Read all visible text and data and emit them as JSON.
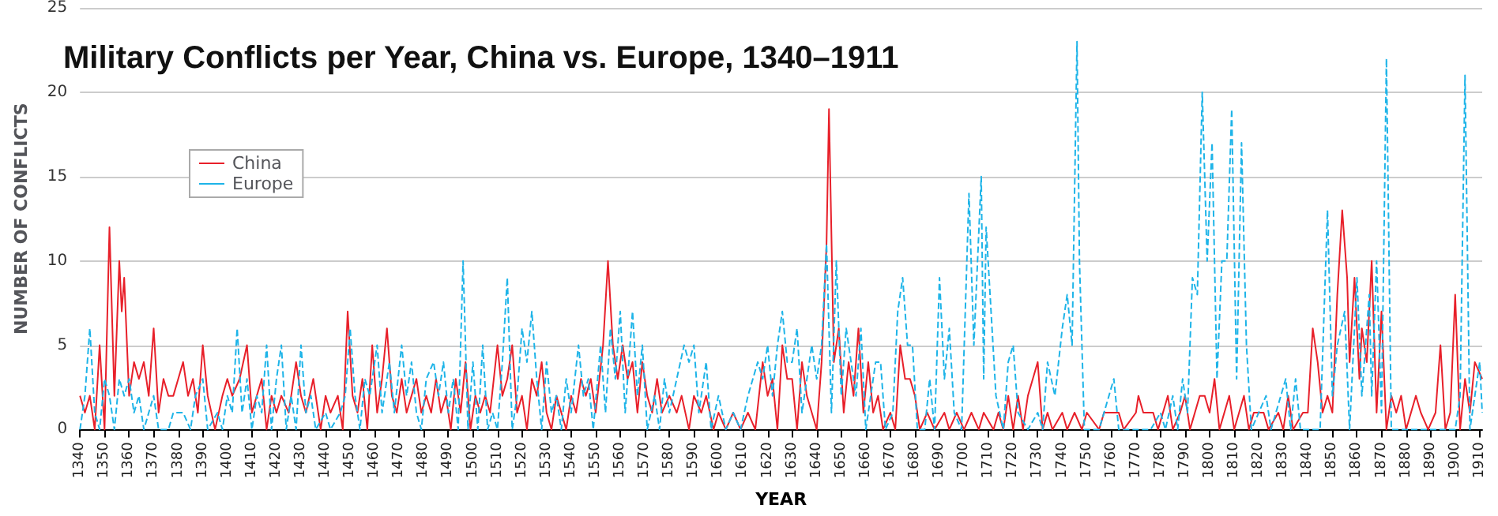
{
  "chart_data": {
    "type": "line",
    "title": "Military Conflicts per Year, China vs. Europe, 1340–1911",
    "xlabel": "YEAR",
    "ylabel": "NUMBER OF CONFLICTS",
    "xlim": [
      1340,
      1911
    ],
    "xticks": [
      1340,
      1350,
      1360,
      1370,
      1380,
      1390,
      1400,
      1410,
      1420,
      1430,
      1440,
      1450,
      1460,
      1470,
      1480,
      1490,
      1500,
      1510,
      1520,
      1530,
      1540,
      1550,
      1560,
      1570,
      1580,
      1590,
      1600,
      1610,
      1620,
      1630,
      1640,
      1650,
      1660,
      1670,
      1680,
      1690,
      1700,
      1710,
      1720,
      1730,
      1740,
      1750,
      1760,
      1770,
      1780,
      1790,
      1800,
      1810,
      1820,
      1830,
      1840,
      1850,
      1860,
      1870,
      1880,
      1890,
      1900,
      1910
    ],
    "ylim": [
      0,
      25
    ],
    "yticks": [
      0,
      5,
      10,
      15,
      20,
      25
    ],
    "grid": "y",
    "legend": "top left",
    "marker": "none",
    "series": [
      {
        "name": "China",
        "color": "#e8202a",
        "line_style": "solid",
        "x": [
          1340,
          1342,
          1344,
          1346,
          1348,
          1350,
          1352,
          1354,
          1356,
          1357,
          1358,
          1360,
          1362,
          1364,
          1366,
          1368,
          1370,
          1372,
          1374,
          1376,
          1378,
          1380,
          1382,
          1384,
          1386,
          1388,
          1390,
          1392,
          1395,
          1398,
          1400,
          1402,
          1405,
          1408,
          1410,
          1412,
          1414,
          1416,
          1418,
          1420,
          1422,
          1425,
          1428,
          1430,
          1432,
          1435,
          1438,
          1440,
          1442,
          1445,
          1447,
          1449,
          1451,
          1453,
          1455,
          1457,
          1459,
          1461,
          1463,
          1465,
          1467,
          1469,
          1471,
          1473,
          1475,
          1477,
          1479,
          1481,
          1483,
          1485,
          1487,
          1489,
          1491,
          1493,
          1495,
          1497,
          1499,
          1501,
          1503,
          1505,
          1507,
          1510,
          1512,
          1514,
          1516,
          1518,
          1520,
          1522,
          1524,
          1526,
          1528,
          1530,
          1532,
          1534,
          1536,
          1538,
          1540,
          1542,
          1544,
          1546,
          1548,
          1550,
          1553,
          1555,
          1557,
          1559,
          1561,
          1563,
          1565,
          1567,
          1569,
          1571,
          1573,
          1575,
          1577,
          1580,
          1583,
          1585,
          1588,
          1590,
          1593,
          1595,
          1598,
          1600,
          1603,
          1606,
          1609,
          1612,
          1615,
          1618,
          1620,
          1622,
          1624,
          1626,
          1628,
          1630,
          1632,
          1634,
          1636,
          1638,
          1640,
          1642,
          1644,
          1645,
          1647,
          1649,
          1651,
          1653,
          1655,
          1657,
          1659,
          1661,
          1663,
          1665,
          1667,
          1670,
          1672,
          1674,
          1676,
          1678,
          1680,
          1682,
          1685,
          1688,
          1692,
          1694,
          1697,
          1700,
          1703,
          1706,
          1708,
          1712,
          1714,
          1716,
          1718,
          1720,
          1722,
          1724,
          1726,
          1728,
          1730,
          1732,
          1734,
          1736,
          1740,
          1742,
          1745,
          1748,
          1750,
          1755,
          1757,
          1763,
          1765,
          1770,
          1771,
          1773,
          1777,
          1779,
          1783,
          1785,
          1788,
          1790,
          1792,
          1796,
          1798,
          1800,
          1802,
          1804,
          1808,
          1810,
          1812,
          1814,
          1816,
          1818,
          1822,
          1824,
          1828,
          1830,
          1832,
          1834,
          1838,
          1840,
          1842,
          1844,
          1846,
          1848,
          1850,
          1852,
          1854,
          1856,
          1857,
          1859,
          1861,
          1862,
          1864,
          1866,
          1868,
          1870,
          1872,
          1874,
          1876,
          1878,
          1880,
          1884,
          1886,
          1889,
          1892,
          1894,
          1896,
          1898,
          1900,
          1902,
          1904,
          1906,
          1908,
          1911
        ],
        "values": [
          2,
          1,
          2,
          0,
          5,
          0,
          12,
          2,
          10,
          7,
          9,
          2,
          4,
          3,
          4,
          2,
          6,
          1,
          3,
          2,
          2,
          3,
          4,
          2,
          3,
          1,
          5,
          2,
          0,
          2,
          3,
          2,
          3,
          5,
          1,
          2,
          3,
          0,
          2,
          1,
          2,
          1,
          4,
          2,
          1,
          3,
          0,
          2,
          1,
          2,
          0,
          7,
          2,
          1,
          3,
          0,
          5,
          1,
          3,
          6,
          2,
          1,
          3,
          1,
          2,
          3,
          1,
          2,
          1,
          3,
          1,
          2,
          0,
          3,
          1,
          4,
          0,
          2,
          1,
          2,
          1,
          5,
          2,
          3,
          5,
          1,
          2,
          0,
          3,
          2,
          4,
          1,
          0,
          2,
          1,
          0,
          2,
          1,
          3,
          2,
          3,
          1,
          5,
          10,
          5,
          3,
          5,
          3,
          4,
          1,
          4,
          2,
          1,
          3,
          1,
          2,
          1,
          2,
          0,
          2,
          1,
          2,
          0,
          1,
          0,
          1,
          0,
          1,
          0,
          4,
          2,
          3,
          0,
          5,
          3,
          3,
          0,
          4,
          2,
          1,
          0,
          4,
          11,
          19,
          4,
          6,
          1,
          4,
          2,
          6,
          1,
          4,
          1,
          2,
          0,
          1,
          0,
          5,
          3,
          3,
          2,
          0,
          1,
          0,
          1,
          0,
          1,
          0,
          1,
          0,
          1,
          0,
          1,
          0,
          2,
          0,
          2,
          0,
          2,
          3,
          4,
          0,
          1,
          0,
          1,
          0,
          1,
          0,
          1,
          0,
          1,
          1,
          0,
          1,
          2,
          1,
          1,
          0,
          2,
          0,
          1,
          2,
          0,
          2,
          2,
          1,
          3,
          0,
          2,
          0,
          1,
          2,
          0,
          1,
          1,
          0,
          1,
          0,
          2,
          0,
          1,
          1,
          6,
          4,
          1,
          2,
          1,
          8,
          13,
          9,
          4,
          9,
          3,
          6,
          4,
          10,
          1,
          7,
          0,
          2,
          1,
          2,
          0,
          2,
          1,
          0,
          1,
          5,
          0,
          1,
          8,
          0,
          3,
          1,
          4,
          3
        ]
      },
      {
        "name": "Europe",
        "color": "#1eb4e8",
        "line_style": "dashed",
        "x": [
          1340,
          1342,
          1344,
          1346,
          1348,
          1350,
          1352,
          1354,
          1356,
          1358,
          1360,
          1362,
          1364,
          1366,
          1368,
          1370,
          1372,
          1376,
          1378,
          1382,
          1385,
          1387,
          1390,
          1392,
          1396,
          1398,
          1400,
          1402,
          1404,
          1406,
          1408,
          1410,
          1412,
          1414,
          1416,
          1418,
          1420,
          1422,
          1424,
          1426,
          1428,
          1430,
          1432,
          1434,
          1436,
          1440,
          1442,
          1446,
          1448,
          1450,
          1452,
          1454,
          1456,
          1458,
          1461,
          1463,
          1466,
          1468,
          1471,
          1473,
          1475,
          1477,
          1479,
          1481,
          1484,
          1486,
          1488,
          1490,
          1492,
          1494,
          1496,
          1498,
          1500,
          1502,
          1504,
          1506,
          1508,
          1510,
          1512,
          1514,
          1516,
          1518,
          1520,
          1522,
          1524,
          1526,
          1528,
          1530,
          1532,
          1534,
          1536,
          1538,
          1540,
          1543,
          1545,
          1547,
          1549,
          1552,
          1554,
          1556,
          1558,
          1560,
          1562,
          1565,
          1567,
          1569,
          1571,
          1574,
          1576,
          1578,
          1580,
          1583,
          1586,
          1588,
          1590,
          1592,
          1595,
          1597,
          1600,
          1603,
          1606,
          1609,
          1612,
          1616,
          1618,
          1620,
          1622,
          1624,
          1626,
          1628,
          1630,
          1632,
          1634,
          1636,
          1638,
          1640,
          1642,
          1644,
          1646,
          1648,
          1650,
          1652,
          1654,
          1656,
          1658,
          1660,
          1662,
          1664,
          1666,
          1668,
          1671,
          1673,
          1675,
          1677,
          1679,
          1681,
          1684,
          1686,
          1688,
          1690,
          1692,
          1694,
          1696,
          1699,
          1702,
          1704,
          1707,
          1708,
          1709,
          1711,
          1713,
          1716,
          1718,
          1720,
          1722,
          1726,
          1730,
          1732,
          1734,
          1737,
          1740,
          1742,
          1744,
          1746,
          1747,
          1749,
          1755,
          1761,
          1763,
          1776,
          1780,
          1782,
          1785,
          1787,
          1789,
          1791,
          1793,
          1795,
          1797,
          1799,
          1801,
          1803,
          1805,
          1807,
          1809,
          1811,
          1813,
          1815,
          1817,
          1823,
          1825,
          1829,
          1831,
          1833,
          1835,
          1837,
          1845,
          1848,
          1850,
          1852,
          1855,
          1857,
          1860,
          1862,
          1865,
          1866,
          1868,
          1870,
          1872,
          1874,
          1880,
          1884,
          1900,
          1902,
          1904,
          1906,
          1910,
          1911
        ],
        "values": [
          0,
          2,
          6,
          1,
          0,
          3,
          2,
          0,
          3,
          2,
          3,
          1,
          2,
          0,
          1,
          2,
          0,
          0,
          1,
          1,
          0,
          2,
          3,
          0,
          1,
          0,
          2,
          1,
          6,
          1,
          3,
          0,
          2,
          1,
          5,
          0,
          3,
          5,
          0,
          2,
          0,
          5,
          1,
          2,
          0,
          1,
          0,
          1,
          2,
          6,
          2,
          0,
          3,
          2,
          5,
          1,
          4,
          1,
          5,
          2,
          4,
          1,
          0,
          3,
          4,
          2,
          4,
          1,
          3,
          0,
          10,
          0,
          4,
          0,
          5,
          0,
          1,
          0,
          4,
          9,
          0,
          2,
          6,
          4,
          7,
          3,
          0,
          4,
          1,
          2,
          0,
          3,
          1,
          5,
          2,
          3,
          0,
          5,
          1,
          6,
          3,
          7,
          1,
          7,
          2,
          5,
          0,
          2,
          0,
          3,
          1,
          3,
          5,
          4,
          5,
          1,
          4,
          0,
          2,
          0,
          1,
          0,
          2,
          4,
          3,
          5,
          2,
          5,
          7,
          4,
          4,
          6,
          1,
          3,
          5,
          3,
          5,
          11,
          1,
          10,
          2,
          6,
          4,
          2,
          6,
          0,
          2,
          4,
          4,
          0,
          1,
          7,
          9,
          5,
          5,
          0,
          0,
          3,
          0,
          9,
          3,
          6,
          1,
          0,
          14,
          5,
          15,
          3,
          12,
          7,
          2,
          0,
          4,
          5,
          1,
          0,
          1,
          0,
          4,
          2,
          6,
          8,
          5,
          23,
          10,
          0,
          0,
          3,
          0,
          0,
          1,
          0,
          2,
          0,
          3,
          1,
          9,
          8,
          20,
          10,
          17,
          3,
          10,
          10,
          19,
          3,
          17,
          5,
          0,
          2,
          0,
          2,
          3,
          0,
          3,
          0,
          0,
          13,
          2,
          5,
          7,
          0,
          9,
          2,
          8,
          2,
          10,
          1,
          22,
          0,
          0,
          0,
          0,
          2,
          21,
          0,
          4,
          1
        ]
      }
    ]
  }
}
